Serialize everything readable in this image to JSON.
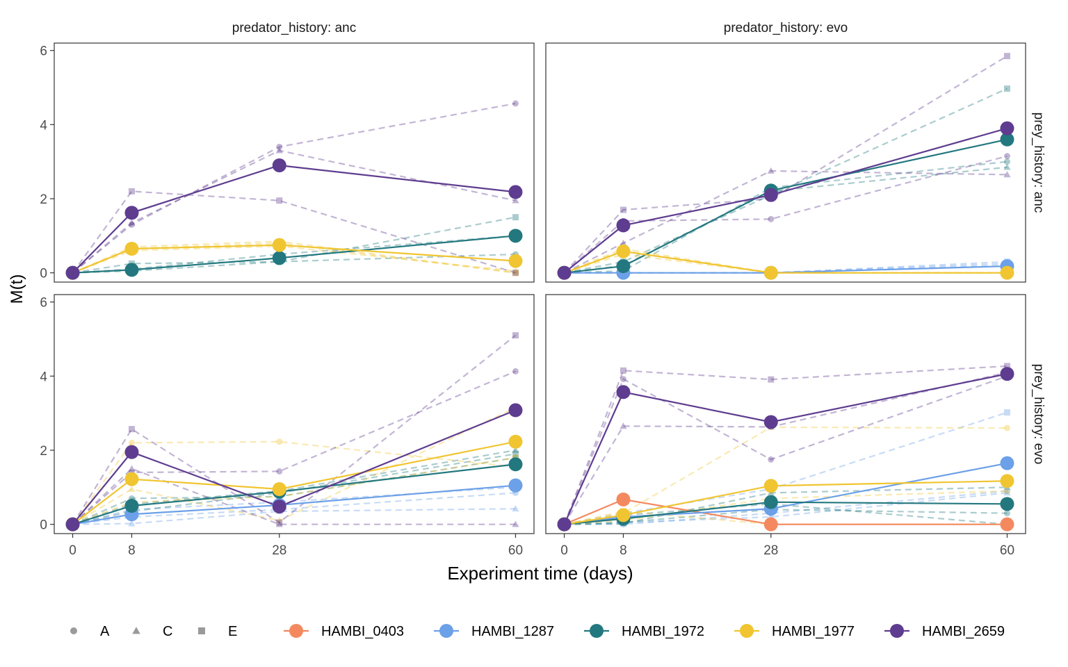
{
  "figure": {
    "xlabel": "Experiment time (days)",
    "ylabel": "M(t)",
    "col_strip_prefix": "predator_history: ",
    "row_strip_prefix": "prey_history: "
  },
  "legend": {
    "shapes": [
      {
        "label": "A",
        "shape": "circle"
      },
      {
        "label": "C",
        "shape": "triangle"
      },
      {
        "label": "E",
        "shape": "square"
      }
    ],
    "species": [
      {
        "label": "HAMBI_0403",
        "color": "#F4895F"
      },
      {
        "label": "HAMBI_1287",
        "color": "#6CA0E8"
      },
      {
        "label": "HAMBI_1972",
        "color": "#23787F"
      },
      {
        "label": "HAMBI_1977",
        "color": "#F0C531"
      },
      {
        "label": "HAMBI_2659",
        "color": "#5E3C8F"
      }
    ]
  },
  "chart_data": {
    "type": "line",
    "x": [
      0,
      8,
      28,
      60
    ],
    "xticks": [
      0,
      8,
      28,
      60
    ],
    "xlim": [
      -2.5,
      62.5
    ],
    "ylim": [
      -0.25,
      6.2
    ],
    "yticks": [
      0,
      2,
      4,
      6
    ],
    "panels": [
      {
        "predator_history": "anc",
        "prey_history": "anc",
        "means": [
          {
            "species": "HAMBI_1972",
            "values": [
              0,
              0.08,
              0.4,
              1.0
            ]
          },
          {
            "species": "HAMBI_1977",
            "values": [
              0,
              0.65,
              0.75,
              0.32
            ]
          },
          {
            "species": "HAMBI_2659",
            "values": [
              0,
              1.62,
              2.9,
              2.18
            ]
          }
        ],
        "replicates": [
          {
            "species": "HAMBI_1972",
            "rep": "A",
            "values": [
              0,
              0.05,
              0.3,
              0.5
            ]
          },
          {
            "species": "HAMBI_1972",
            "rep": "C",
            "values": [
              0,
              0.1,
              0.5,
              1.0
            ]
          },
          {
            "species": "HAMBI_1972",
            "rep": "E",
            "values": [
              0,
              0.25,
              0.3,
              1.5
            ]
          },
          {
            "species": "HAMBI_1977",
            "rep": "A",
            "values": [
              0,
              0.7,
              0.85,
              0.0
            ]
          },
          {
            "species": "HAMBI_1977",
            "rep": "C",
            "values": [
              0,
              0.6,
              0.72,
              0.05
            ]
          },
          {
            "species": "HAMBI_1977",
            "rep": "E",
            "values": [
              0,
              0.65,
              0.8,
              0.0
            ]
          },
          {
            "species": "HAMBI_2659",
            "rep": "A",
            "values": [
              0,
              1.3,
              3.4,
              4.57
            ]
          },
          {
            "species": "HAMBI_2659",
            "rep": "C",
            "values": [
              0,
              1.35,
              3.3,
              1.95
            ]
          },
          {
            "species": "HAMBI_2659",
            "rep": "E",
            "values": [
              0,
              2.2,
              1.95,
              0.0
            ]
          }
        ]
      },
      {
        "predator_history": "evo",
        "prey_history": "anc",
        "means": [
          {
            "species": "HAMBI_1287",
            "values": [
              0,
              0.0,
              0.0,
              0.18
            ]
          },
          {
            "species": "HAMBI_1972",
            "values": [
              0,
              0.18,
              2.22,
              3.6
            ]
          },
          {
            "species": "HAMBI_1977",
            "values": [
              0,
              0.58,
              0.0,
              0.0
            ]
          },
          {
            "species": "HAMBI_2659",
            "values": [
              0,
              1.28,
              2.1,
              3.9
            ]
          }
        ],
        "replicates": [
          {
            "species": "HAMBI_1287",
            "rep": "A",
            "values": [
              0,
              0.0,
              0.0,
              0.2
            ]
          },
          {
            "species": "HAMBI_1287",
            "rep": "C",
            "values": [
              0,
              0.0,
              0.0,
              0.25
            ]
          },
          {
            "species": "HAMBI_1287",
            "rep": "E",
            "values": [
              0,
              0.0,
              0.0,
              0.3
            ]
          },
          {
            "species": "HAMBI_1972",
            "rep": "A",
            "values": [
              0,
              0.05,
              2.3,
              3.0
            ]
          },
          {
            "species": "HAMBI_1972",
            "rep": "C",
            "values": [
              0,
              0.2,
              2.2,
              2.85
            ]
          },
          {
            "species": "HAMBI_1972",
            "rep": "E",
            "values": [
              0,
              0.3,
              2.1,
              4.97
            ]
          },
          {
            "species": "HAMBI_1977",
            "rep": "A",
            "values": [
              0,
              0.6,
              0.0,
              0.0
            ]
          },
          {
            "species": "HAMBI_1977",
            "rep": "C",
            "values": [
              0,
              0.5,
              0.0,
              0.0
            ]
          },
          {
            "species": "HAMBI_1977",
            "rep": "E",
            "values": [
              0,
              0.65,
              0.0,
              0.0
            ]
          },
          {
            "species": "HAMBI_2659",
            "rep": "A",
            "values": [
              0,
              1.4,
              1.45,
              3.15
            ]
          },
          {
            "species": "HAMBI_2659",
            "rep": "C",
            "values": [
              0,
              0.8,
              2.75,
              2.65
            ]
          },
          {
            "species": "HAMBI_2659",
            "rep": "E",
            "values": [
              0,
              1.7,
              2.0,
              5.85
            ]
          }
        ]
      },
      {
        "predator_history": "anc",
        "prey_history": "evo",
        "means": [
          {
            "species": "HAMBI_1287",
            "values": [
              0,
              0.27,
              0.52,
              1.05
            ]
          },
          {
            "species": "HAMBI_1972",
            "values": [
              0,
              0.5,
              0.88,
              1.62
            ]
          },
          {
            "species": "HAMBI_1977",
            "values": [
              0,
              1.22,
              0.95,
              2.23
            ]
          },
          {
            "species": "HAMBI_2659",
            "values": [
              0,
              1.95,
              0.48,
              3.08
            ]
          }
        ],
        "replicates": [
          {
            "species": "HAMBI_1287",
            "rep": "A",
            "values": [
              0,
              0.2,
              0.4,
              0.85
            ]
          },
          {
            "species": "HAMBI_1287",
            "rep": "C",
            "values": [
              0,
              0.02,
              0.35,
              0.42
            ]
          },
          {
            "species": "HAMBI_1287",
            "rep": "E",
            "values": [
              0,
              0.4,
              0.6,
              1.0
            ]
          },
          {
            "species": "HAMBI_1972",
            "rep": "A",
            "values": [
              0,
              0.7,
              0.75,
              1.8
            ]
          },
          {
            "species": "HAMBI_1972",
            "rep": "C",
            "values": [
              0,
              0.55,
              0.9,
              2.0
            ]
          },
          {
            "species": "HAMBI_1972",
            "rep": "E",
            "values": [
              0,
              0.35,
              0.85,
              1.9
            ]
          },
          {
            "species": "HAMBI_1977",
            "rep": "A",
            "values": [
              0,
              2.2,
              2.23,
              1.55
            ]
          },
          {
            "species": "HAMBI_1977",
            "rep": "C",
            "values": [
              0,
              0.95,
              0.1,
              3.15
            ]
          },
          {
            "species": "HAMBI_1977",
            "rep": "E",
            "values": [
              0,
              0.6,
              0.75,
              1.8
            ]
          },
          {
            "species": "HAMBI_2659",
            "rep": "A",
            "values": [
              0,
              1.4,
              1.43,
              4.13
            ]
          },
          {
            "species": "HAMBI_2659",
            "rep": "C",
            "values": [
              0,
              1.5,
              0.0,
              0.0
            ]
          },
          {
            "species": "HAMBI_2659",
            "rep": "E",
            "values": [
              0,
              2.57,
              0.05,
              5.1
            ]
          }
        ]
      },
      {
        "predator_history": "evo",
        "prey_history": "evo",
        "means": [
          {
            "species": "HAMBI_0403",
            "values": [
              0,
              0.67,
              0.0,
              0.0
            ]
          },
          {
            "species": "HAMBI_1287",
            "values": [
              0,
              0.2,
              0.42,
              1.65
            ]
          },
          {
            "species": "HAMBI_1972",
            "values": [
              0,
              0.15,
              0.6,
              0.55
            ]
          },
          {
            "species": "HAMBI_1977",
            "values": [
              0,
              0.25,
              1.04,
              1.17
            ]
          },
          {
            "species": "HAMBI_2659",
            "values": [
              0,
              3.57,
              2.76,
              4.06
            ]
          }
        ],
        "replicates": [
          {
            "species": "HAMBI_1287",
            "rep": "A",
            "values": [
              0,
              0.0,
              0.3,
              0.9
            ]
          },
          {
            "species": "HAMBI_1287",
            "rep": "C",
            "values": [
              0,
              0.05,
              0.2,
              0.85
            ]
          },
          {
            "species": "HAMBI_1287",
            "rep": "E",
            "values": [
              0,
              0.3,
              0.95,
              3.02
            ]
          },
          {
            "species": "HAMBI_1972",
            "rep": "A",
            "values": [
              0,
              0.05,
              0.4,
              0.3
            ]
          },
          {
            "species": "HAMBI_1972",
            "rep": "C",
            "values": [
              0,
              0.02,
              0.85,
              1.0
            ]
          },
          {
            "species": "HAMBI_1972",
            "rep": "E",
            "values": [
              0,
              0.25,
              0.55,
              0.0
            ]
          },
          {
            "species": "HAMBI_1977",
            "rep": "A",
            "values": [
              0,
              0.3,
              2.62,
              2.6
            ]
          },
          {
            "species": "HAMBI_1977",
            "rep": "C",
            "values": [
              0,
              0.1,
              0.7,
              0.9
            ]
          },
          {
            "species": "HAMBI_1977",
            "rep": "E",
            "values": [
              0,
              0.35,
              0.0,
              0.0
            ]
          },
          {
            "species": "HAMBI_2659",
            "rep": "A",
            "values": [
              0,
              3.92,
              1.75,
              4.0
            ]
          },
          {
            "species": "HAMBI_2659",
            "rep": "C",
            "values": [
              0,
              2.65,
              2.63,
              4.1
            ]
          },
          {
            "species": "HAMBI_2659",
            "rep": "E",
            "values": [
              0,
              4.15,
              3.91,
              4.27
            ]
          }
        ]
      }
    ]
  }
}
